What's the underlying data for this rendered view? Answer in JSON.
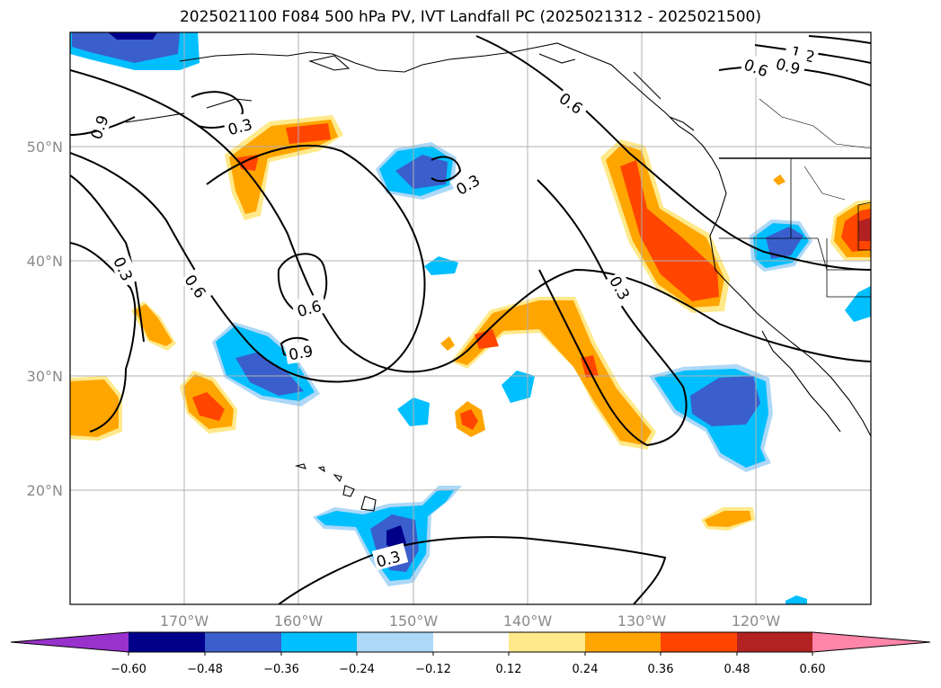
{
  "title": "2025021100 F084 500 hPa PV, IVT Landfall PC (2025021312 - 2025021500)",
  "map": {
    "lat_labels": [
      "50°N",
      "40°N",
      "30°N",
      "20°N"
    ],
    "lon_labels": [
      "170°W",
      "160°W",
      "150°W",
      "140°W",
      "130°W",
      "120°W"
    ],
    "contour_labels": [
      "1.2",
      "0.9",
      "0.6",
      "0.6",
      "0.3",
      "0.3",
      "0.9",
      "0.3",
      "0.6",
      "0.6",
      "0.3",
      "0.9",
      "0.3"
    ]
  },
  "colorbar": {
    "tick_labels": [
      "−0.60",
      "−0.48",
      "−0.36",
      "−0.24",
      "−0.12",
      "0.12",
      "0.24",
      "0.36",
      "0.48",
      "0.60"
    ],
    "colors": [
      "#9932cc",
      "#00008b",
      "#3a5fcd",
      "#00bfff",
      "#add8f7",
      "#ffffff",
      "#ffe98a",
      "#ffa500",
      "#ff4500",
      "#b22222",
      "#ff85a9"
    ]
  },
  "fill_colors": {
    "neg_light": "#add8f7",
    "neg_mid": "#00bfff",
    "neg_strong": "#3a5fcd",
    "neg_max": "#00008b",
    "pos_light": "#ffe98a",
    "pos_mid": "#ffa500",
    "pos_strong": "#ff4500",
    "pos_max": "#b22222"
  }
}
